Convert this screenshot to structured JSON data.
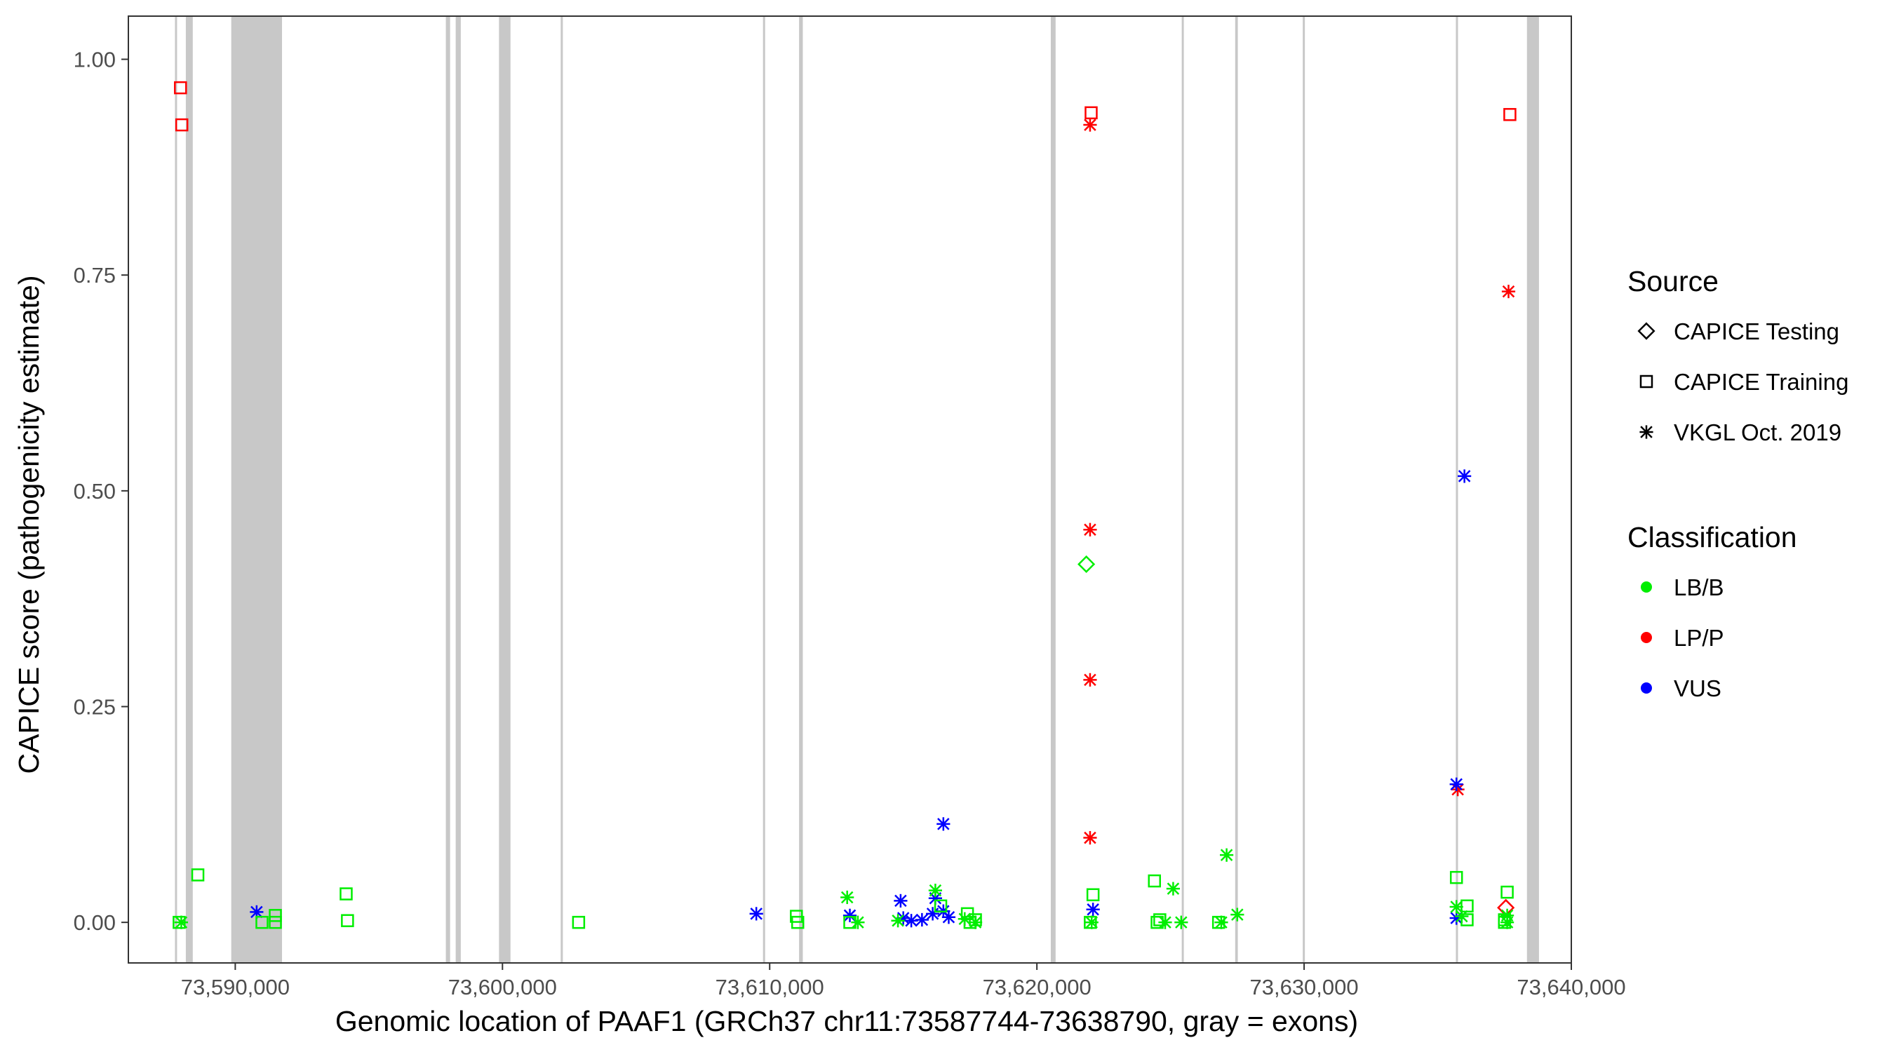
{
  "chart_data": {
    "type": "scatter",
    "title": "",
    "xlabel": "Genomic location of PAAF1 (GRCh37 chr11:73587744-73638790, gray = exons)",
    "ylabel": "CAPICE score (pathogenicity estimate)",
    "xlim": [
      73586000,
      73640000
    ],
    "ylim": [
      -0.047,
      1.05
    ],
    "x_ticks": [
      {
        "value": 73590000,
        "label": "73,590,000"
      },
      {
        "value": 73600000,
        "label": "73,600,000"
      },
      {
        "value": 73610000,
        "label": "73,610,000"
      },
      {
        "value": 73620000,
        "label": "73,620,000"
      },
      {
        "value": 73630000,
        "label": "73,630,000"
      },
      {
        "value": 73640000,
        "label": "73,640,000"
      }
    ],
    "y_ticks": [
      {
        "value": 0.0,
        "label": "0.00"
      },
      {
        "value": 0.25,
        "label": "0.25"
      },
      {
        "value": 0.5,
        "label": "0.50"
      },
      {
        "value": 0.75,
        "label": "0.75"
      },
      {
        "value": 1.0,
        "label": "1.00"
      }
    ],
    "grid": false,
    "legend_position": "right",
    "exons": [
      [
        73587744,
        73587790
      ],
      [
        73588150,
        73588410
      ],
      [
        73589850,
        73591750
      ],
      [
        73597880,
        73598040
      ],
      [
        73598250,
        73598440
      ],
      [
        73599870,
        73600300
      ],
      [
        73602180,
        73602240
      ],
      [
        73609750,
        73609810
      ],
      [
        73611100,
        73611240
      ],
      [
        73620520,
        73620700
      ],
      [
        73625420,
        73625480
      ],
      [
        73627420,
        73627520
      ],
      [
        73629950,
        73630010
      ],
      [
        73635680,
        73635750
      ],
      [
        73638340,
        73638790
      ]
    ],
    "legend": {
      "source_title": "Source",
      "source_items": [
        {
          "key": "testing",
          "label": "CAPICE Testing",
          "shape": "diamond"
        },
        {
          "key": "training",
          "label": "CAPICE Training",
          "shape": "square"
        },
        {
          "key": "vkgl",
          "label": "VKGL Oct. 2019",
          "shape": "asterisk"
        }
      ],
      "class_title": "Classification",
      "class_items": [
        {
          "key": "lbb",
          "label": "LB/B",
          "color": "#00ee00"
        },
        {
          "key": "lpp",
          "label": "LP/P",
          "color": "#ff0000"
        },
        {
          "key": "vus",
          "label": "VUS",
          "color": "#0000ff"
        }
      ]
    },
    "colors": {
      "lbb": "#00ee00",
      "lpp": "#ff0000",
      "vus": "#0000ff",
      "exon": "#c8c8c8"
    },
    "series": [
      {
        "source": "training",
        "classification": "lpp",
        "points": [
          [
            73587950,
            0.967
          ],
          [
            73588000,
            0.924
          ],
          [
            73622030,
            0.938
          ],
          [
            73637700,
            0.936
          ]
        ]
      },
      {
        "source": "vkgl",
        "classification": "lpp",
        "points": [
          [
            73621990,
            0.924
          ],
          [
            73621990,
            0.455
          ],
          [
            73621990,
            0.281
          ],
          [
            73621990,
            0.098
          ],
          [
            73637650,
            0.731
          ],
          [
            73635750,
            0.154
          ]
        ]
      },
      {
        "source": "testing",
        "classification": "lpp",
        "points": [
          [
            73637550,
            0.017
          ]
        ]
      },
      {
        "source": "vkgl",
        "classification": "vus",
        "points": [
          [
            73590800,
            0.012
          ],
          [
            73609500,
            0.01
          ],
          [
            73613000,
            0.008
          ],
          [
            73614900,
            0.025
          ],
          [
            73615000,
            0.005
          ],
          [
            73615300,
            0.002
          ],
          [
            73615700,
            0.003
          ],
          [
            73616100,
            0.01
          ],
          [
            73616200,
            0.028
          ],
          [
            73616500,
            0.013
          ],
          [
            73616700,
            0.006
          ],
          [
            73616500,
            0.114
          ],
          [
            73622100,
            0.015
          ],
          [
            73635700,
            0.16
          ],
          [
            73636000,
            0.517
          ],
          [
            73635700,
            0.005
          ]
        ]
      },
      {
        "source": "testing",
        "classification": "lbb",
        "points": [
          [
            73621850,
            0.415
          ]
        ]
      },
      {
        "source": "training",
        "classification": "lbb",
        "points": [
          [
            73587900,
            0.0
          ],
          [
            73588600,
            0.055
          ],
          [
            73591000,
            0.0
          ],
          [
            73591500,
            0.008
          ],
          [
            73591500,
            0.0
          ],
          [
            73594150,
            0.033
          ],
          [
            73594200,
            0.002
          ],
          [
            73602850,
            0.0
          ],
          [
            73611000,
            0.007
          ],
          [
            73611050,
            0.0
          ],
          [
            73613000,
            0.0
          ],
          [
            73616400,
            0.019
          ],
          [
            73617400,
            0.01
          ],
          [
            73617700,
            0.003
          ],
          [
            73617500,
            0.0
          ],
          [
            73622000,
            0.0
          ],
          [
            73622100,
            0.032
          ],
          [
            73624400,
            0.048
          ],
          [
            73624600,
            0.003
          ],
          [
            73624500,
            0.0
          ],
          [
            73626800,
            0.0
          ],
          [
            73635700,
            0.052
          ],
          [
            73636100,
            0.019
          ],
          [
            73636100,
            0.003
          ],
          [
            73637600,
            0.035
          ],
          [
            73637500,
            0.003
          ],
          [
            73637500,
            0.0
          ]
        ]
      },
      {
        "source": "vkgl",
        "classification": "lbb",
        "points": [
          [
            73587980,
            0.0
          ],
          [
            73612900,
            0.029
          ],
          [
            73613300,
            0.0
          ],
          [
            73614800,
            0.002
          ],
          [
            73616200,
            0.037
          ],
          [
            73617300,
            0.004
          ],
          [
            73617700,
            0.0
          ],
          [
            73622050,
            0.0
          ],
          [
            73625100,
            0.039
          ],
          [
            73624800,
            0.0
          ],
          [
            73625400,
            0.0
          ],
          [
            73627100,
            0.078
          ],
          [
            73627500,
            0.009
          ],
          [
            73626900,
            0.0
          ],
          [
            73635700,
            0.018
          ],
          [
            73635900,
            0.007
          ],
          [
            73637600,
            0.008
          ],
          [
            73637600,
            0.0
          ]
        ]
      }
    ]
  }
}
